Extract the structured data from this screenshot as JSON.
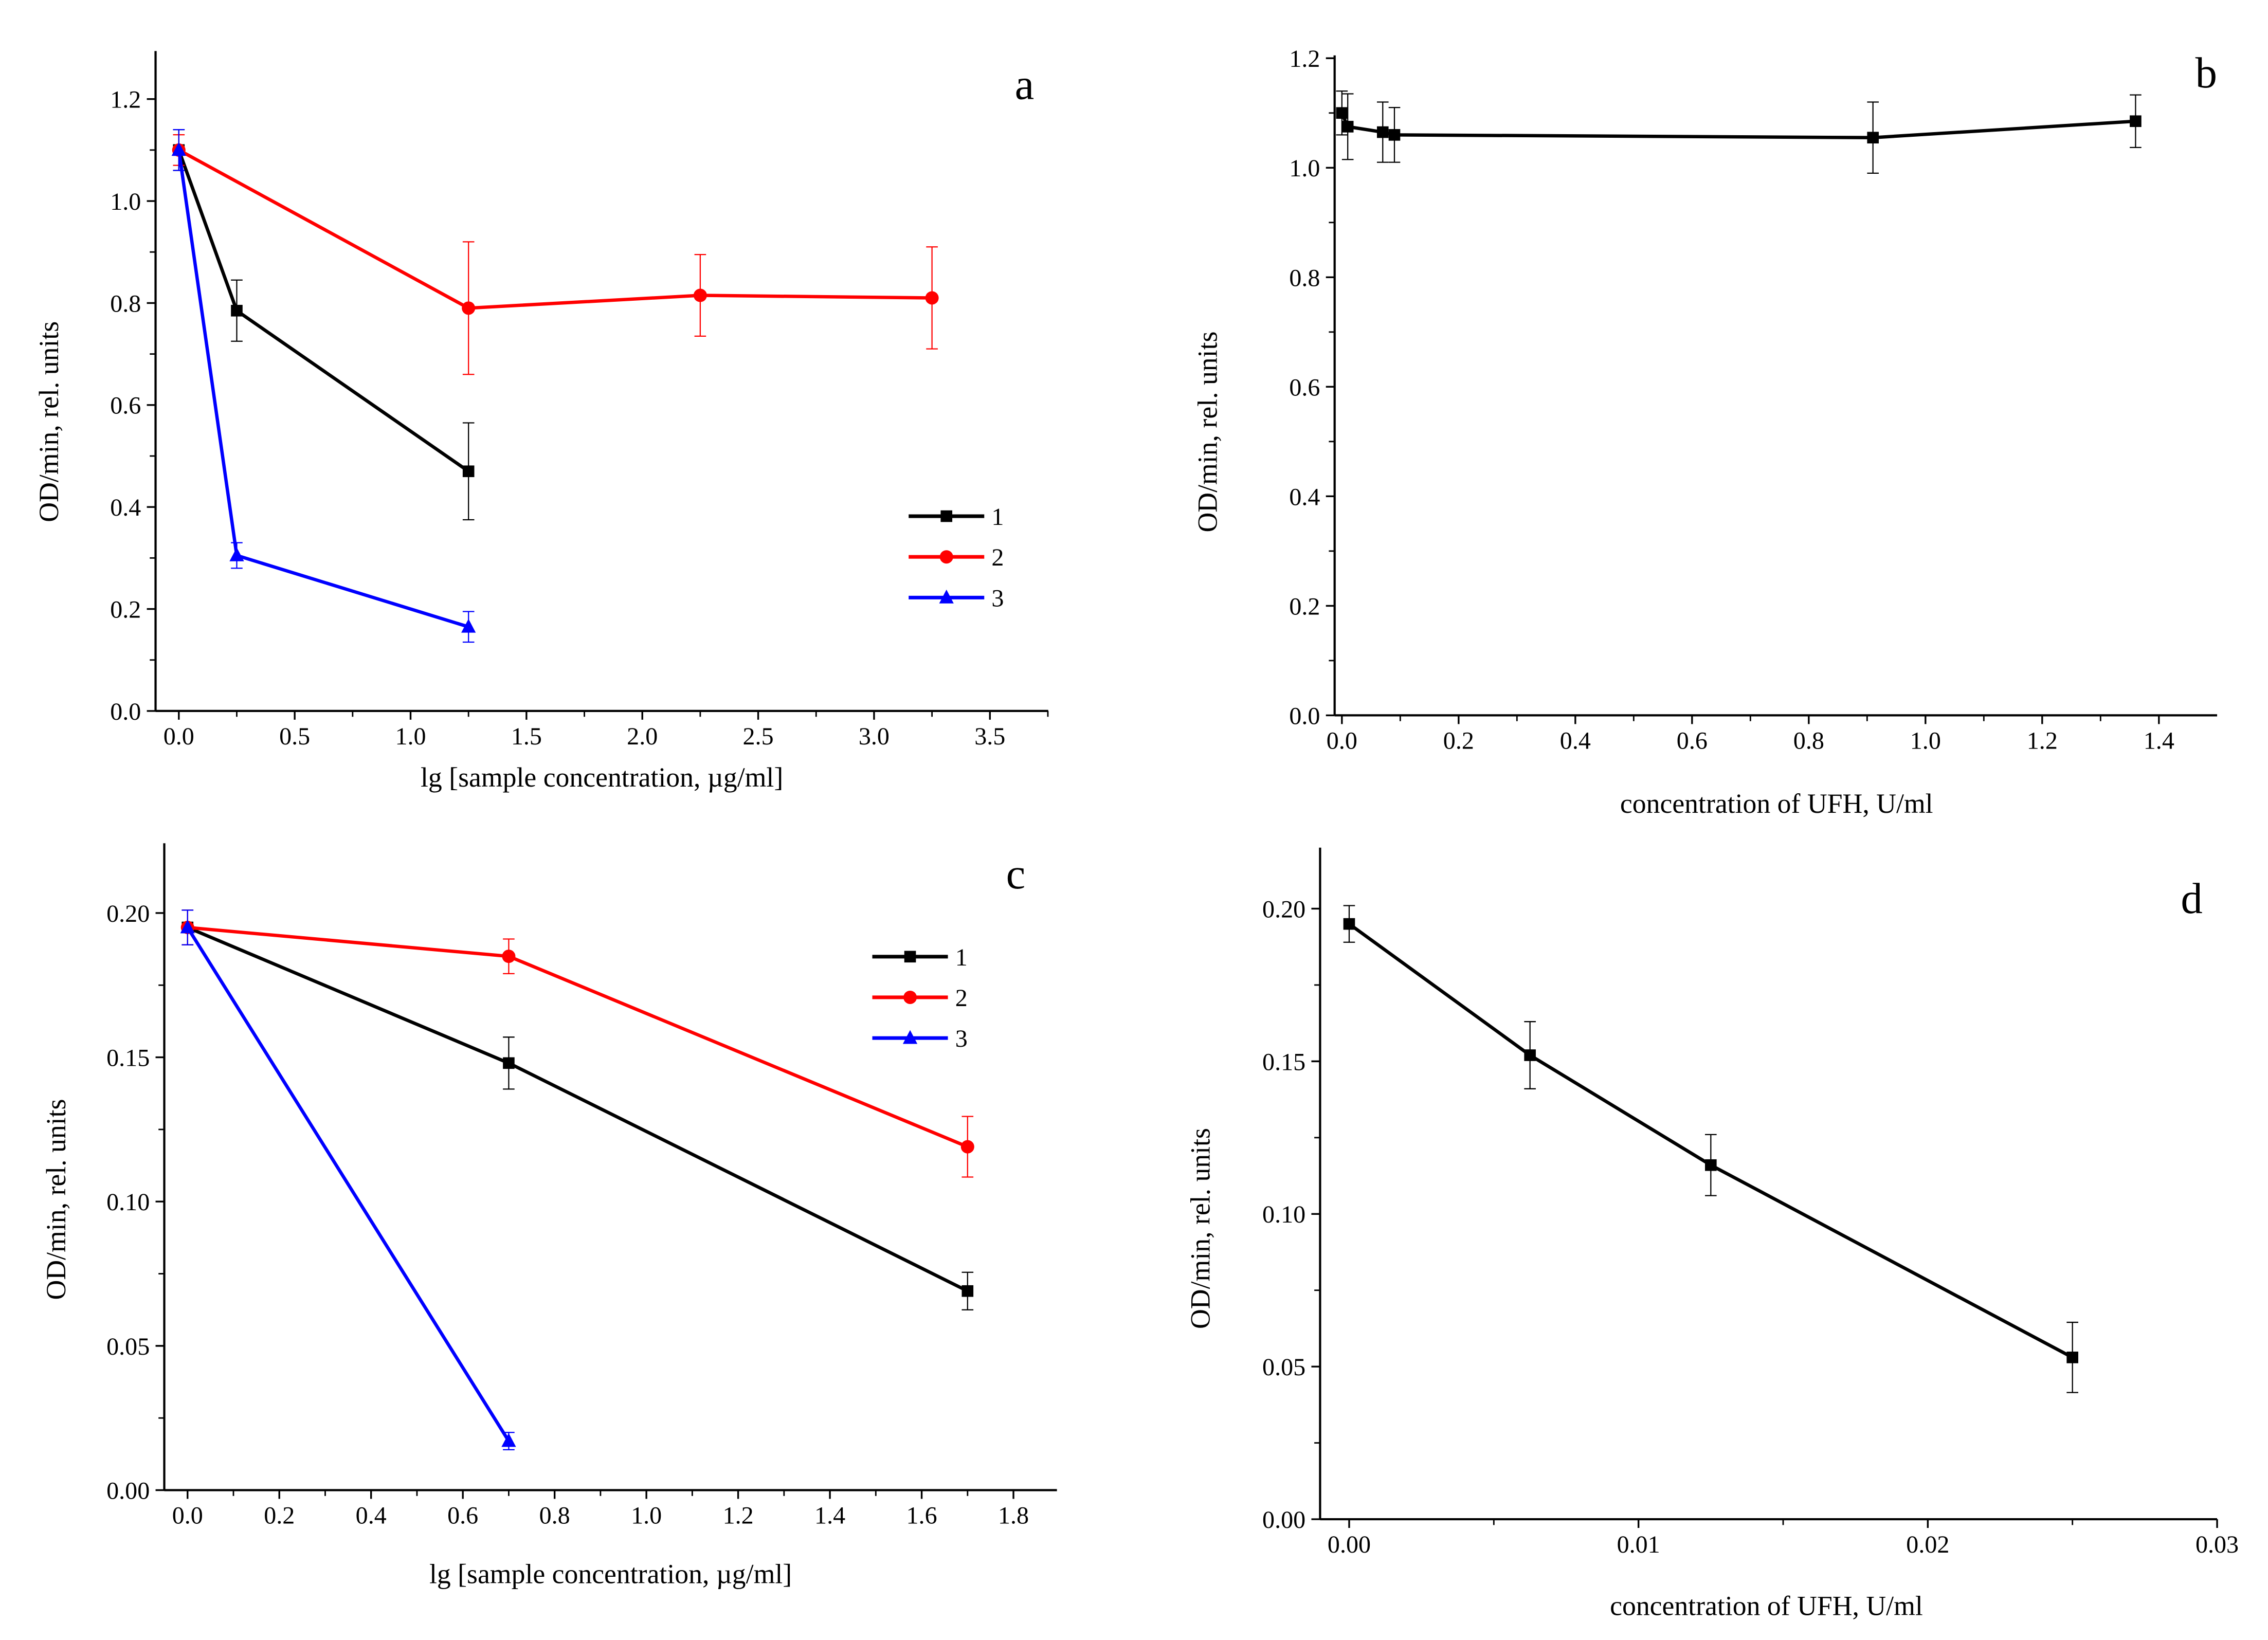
{
  "chart_data": [
    {
      "type": "line",
      "panel_label": "a",
      "xlabel": "lg [sample concentration, µg/ml]",
      "ylabel": "OD/min, rel. units",
      "xlim": [
        -0.1,
        3.75
      ],
      "ylim": [
        0,
        1.3
      ],
      "xticks": [
        "0.0",
        "0.5",
        "1.0",
        "1.5",
        "2.0",
        "2.5",
        "3.0",
        "3.5"
      ],
      "yticks": [
        "0.0",
        "0.2",
        "0.4",
        "0.6",
        "0.8",
        "1.0",
        "1.2"
      ],
      "legend": "right",
      "series": [
        {
          "name": "1",
          "color": "#000000",
          "marker": "square",
          "x": [
            0,
            0.25,
            1.25
          ],
          "y": [
            1.1,
            0.785,
            0.47
          ],
          "err": [
            0.04,
            0.06,
            0.095
          ]
        },
        {
          "name": "2",
          "color": "#ff0000",
          "marker": "circle",
          "x": [
            0,
            1.25,
            2.25,
            3.25
          ],
          "y": [
            1.1,
            0.79,
            0.815,
            0.81
          ],
          "err": [
            0.03,
            0.13,
            0.08,
            0.1
          ]
        },
        {
          "name": "3",
          "color": "#0000ff",
          "marker": "triangle",
          "x": [
            0,
            0.25,
            1.25
          ],
          "y": [
            1.1,
            0.305,
            0.165
          ],
          "err": [
            0.04,
            0.025,
            0.03
          ]
        }
      ]
    },
    {
      "type": "line",
      "panel_label": "b",
      "xlabel": "concentration of UFH, U/ml",
      "ylabel": "OD/min, rel. units",
      "xlim": [
        -0.01,
        1.5
      ],
      "ylim": [
        0,
        1.2
      ],
      "xticks": [
        "0.0",
        "0.2",
        "0.4",
        "0.6",
        "0.8",
        "1.0",
        "1.2",
        "1.4"
      ],
      "yticks": [
        "0.0",
        "0.2",
        "0.4",
        "0.6",
        "0.8",
        "1.0",
        "1.2"
      ],
      "series": [
        {
          "name": "UFH",
          "color": "#000000",
          "marker": "square",
          "x": [
            0,
            0.01,
            0.07,
            0.09,
            0.91,
            1.36
          ],
          "y": [
            1.1,
            1.075,
            1.065,
            1.06,
            1.055,
            1.085
          ],
          "err": [
            0.04,
            0.06,
            0.055,
            0.05,
            0.065,
            0.048
          ]
        }
      ]
    },
    {
      "type": "line",
      "panel_label": "c",
      "xlabel": "lg [sample concentration, µg/ml]",
      "ylabel": "OD/min, rel. units",
      "xlim": [
        -0.05,
        1.9
      ],
      "ylim": [
        0,
        0.225
      ],
      "xticks": [
        "0.0",
        "0.2",
        "0.4",
        "0.6",
        "0.8",
        "1.0",
        "1.2",
        "1.4",
        "1.6",
        "1.8"
      ],
      "yticks": [
        "0.00",
        "0.05",
        "0.10",
        "0.15",
        "0.20"
      ],
      "legend": "top-right",
      "series": [
        {
          "name": "1",
          "color": "#000000",
          "marker": "square",
          "x": [
            0,
            0.7,
            1.7
          ],
          "y": [
            0.195,
            0.148,
            0.069
          ],
          "err": [
            0.006,
            0.009,
            0.0065
          ]
        },
        {
          "name": "2",
          "color": "#ff0000",
          "marker": "circle",
          "x": [
            0,
            0.7,
            1.7
          ],
          "y": [
            0.195,
            0.185,
            0.119
          ],
          "err": [
            0.006,
            0.006,
            0.0105
          ]
        },
        {
          "name": "3",
          "color": "#0000ff",
          "marker": "triangle",
          "x": [
            0,
            0.7
          ],
          "y": [
            0.195,
            0.017
          ],
          "err": [
            0.006,
            0.003
          ]
        }
      ]
    },
    {
      "type": "line",
      "panel_label": "d",
      "xlabel": "concentration of UFH, U/ml",
      "ylabel": "OD/min, rel. units",
      "xlim": [
        -0.001,
        0.03
      ],
      "ylim": [
        0,
        0.22
      ],
      "xticks": [
        "0.00",
        "0.01",
        "0.02",
        "0.03"
      ],
      "yticks": [
        "0.00",
        "0.05",
        "0.10",
        "0.15",
        "0.20"
      ],
      "series": [
        {
          "name": "UFH",
          "color": "#000000",
          "marker": "square",
          "x": [
            0,
            0.00625,
            0.0125,
            0.025
          ],
          "y": [
            0.195,
            0.152,
            0.116,
            0.053
          ],
          "err": [
            0.006,
            0.011,
            0.01,
            0.0115
          ]
        }
      ]
    }
  ]
}
